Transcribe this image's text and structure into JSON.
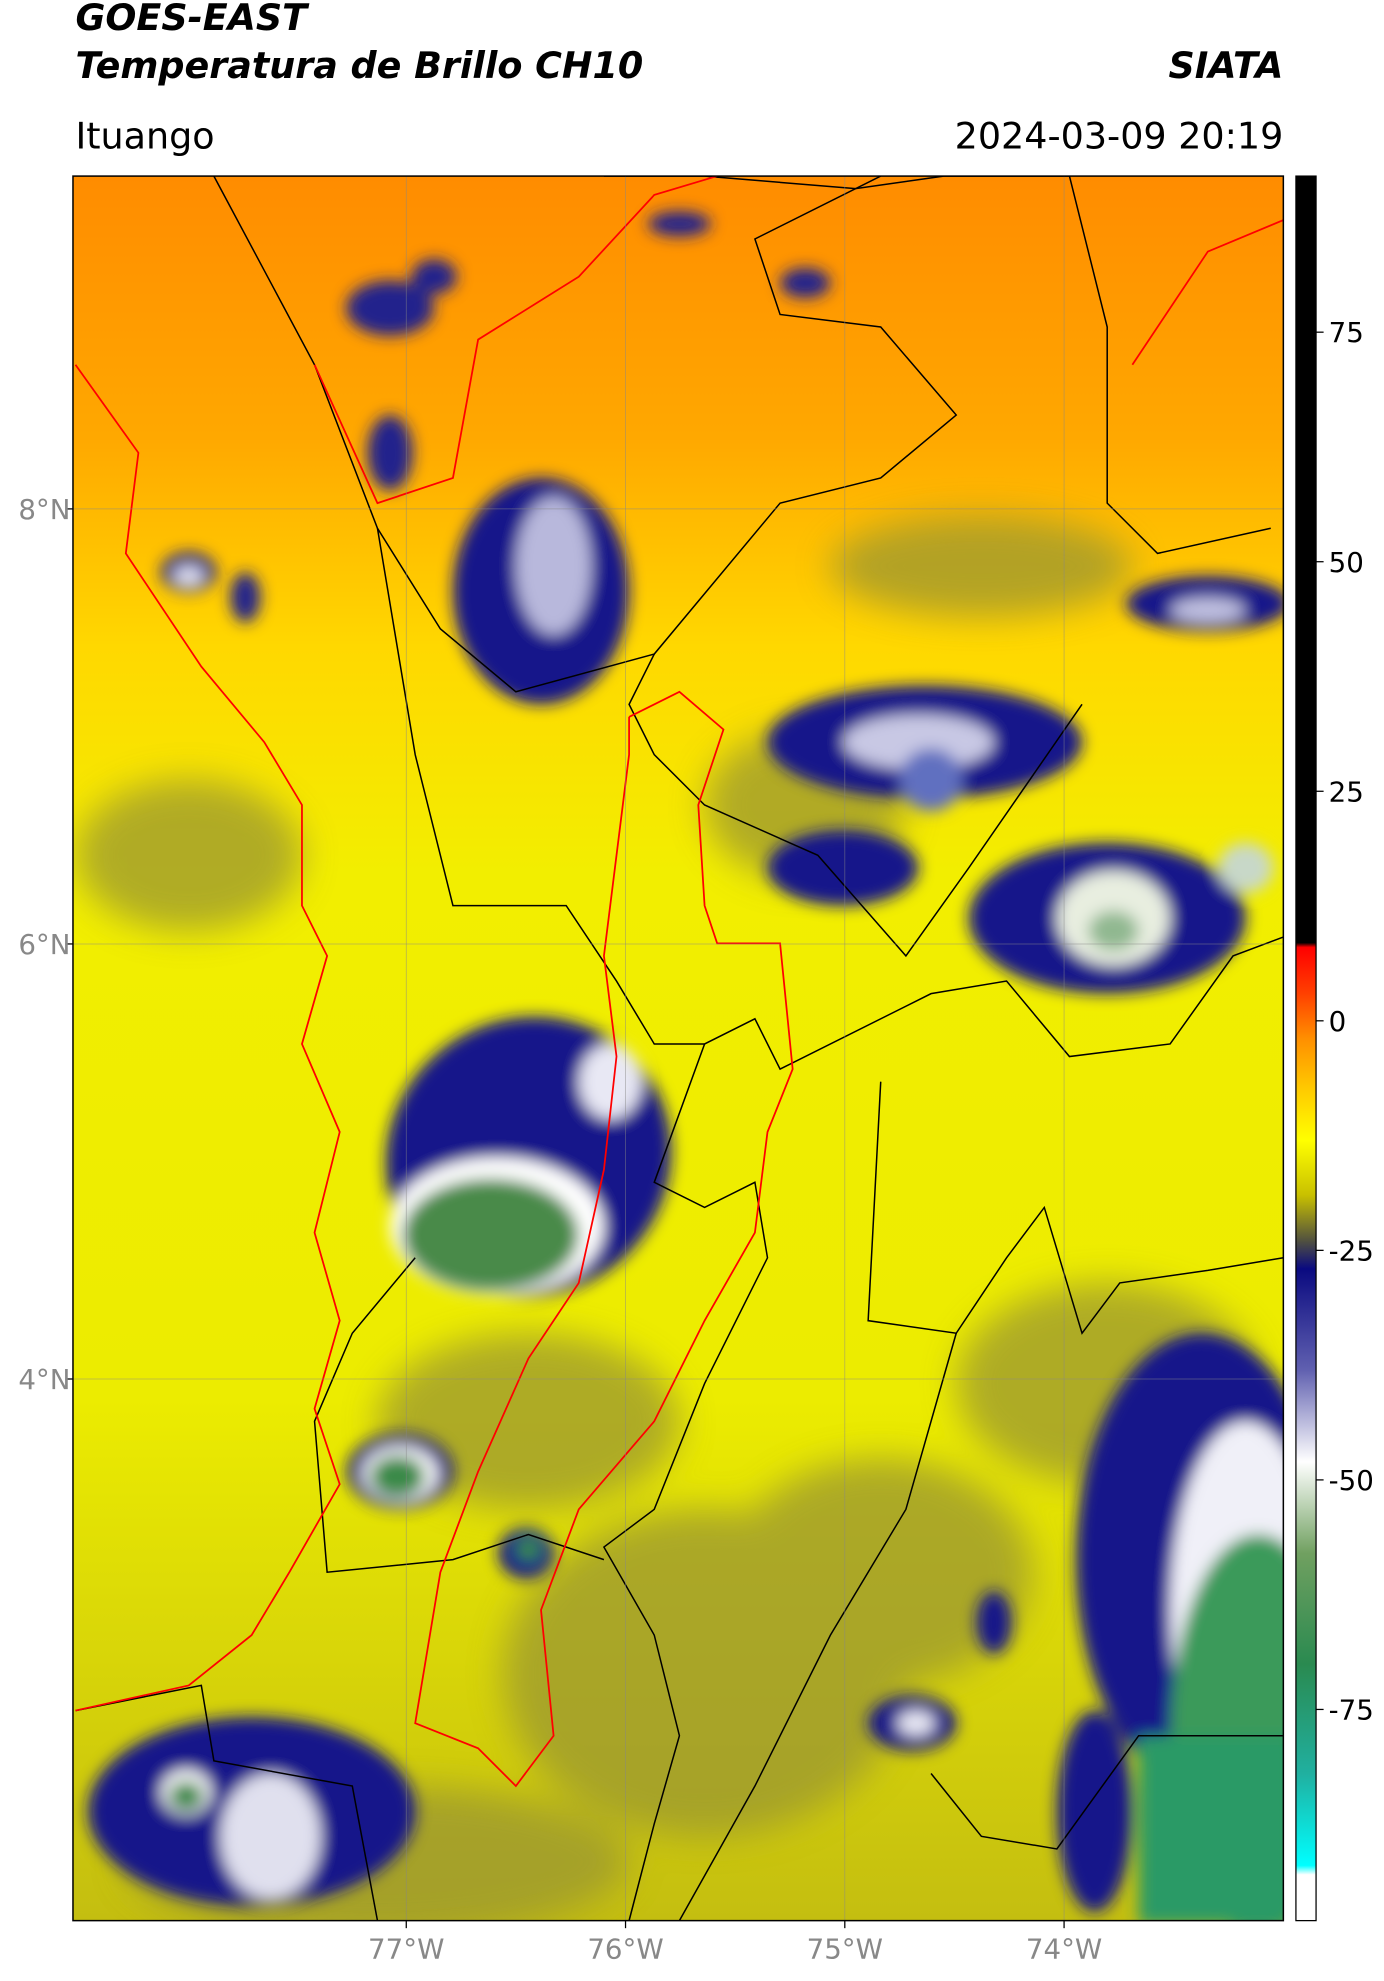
{
  "header": {
    "title": "GOES-EAST",
    "subtitle": "Temperatura de Brillo CH10",
    "organization": "SIATA",
    "location": "Ituango",
    "datetime": "2024-03-09 20:19"
  },
  "map": {
    "xlim": [
      -78.52,
      -73.0
    ],
    "ylim": [
      1.51,
      9.53
    ],
    "xticks": [
      {
        "value": -77,
        "label": "77°W"
      },
      {
        "value": -76,
        "label": "76°W"
      },
      {
        "value": -75,
        "label": "75°W"
      },
      {
        "value": -74,
        "label": "74°W"
      }
    ],
    "yticks": [
      {
        "value": 8,
        "label": "8°N"
      },
      {
        "value": 6,
        "label": "6°N"
      },
      {
        "value": 4,
        "label": "4°N"
      }
    ],
    "grid": true
  },
  "colorbar": {
    "lim": [
      -98,
      92
    ],
    "ticks": [
      75,
      50,
      25,
      0,
      -25,
      -50,
      -75
    ],
    "stops": [
      {
        "value": 92,
        "color": "#000000"
      },
      {
        "value": 8.5,
        "color": "#000000"
      },
      {
        "value": 8,
        "color": "#ff0000"
      },
      {
        "value": 3,
        "color": "#ff4000"
      },
      {
        "value": -2,
        "color": "#ff9000"
      },
      {
        "value": -8,
        "color": "#ffd000"
      },
      {
        "value": -13,
        "color": "#ffff00"
      },
      {
        "value": -19,
        "color": "#c8c000"
      },
      {
        "value": -24,
        "color": "#505040"
      },
      {
        "value": -27,
        "color": "#0a0a80"
      },
      {
        "value": -38,
        "color": "#6060b0"
      },
      {
        "value": -48,
        "color": "#ffffff"
      },
      {
        "value": -58,
        "color": "#70a060"
      },
      {
        "value": -70,
        "color": "#2a8a50"
      },
      {
        "value": -82,
        "color": "#20b0a0"
      },
      {
        "value": -92,
        "color": "#00ffff"
      },
      {
        "value": -93,
        "color": "#ffffff"
      },
      {
        "value": -98,
        "color": "#ffffff"
      }
    ]
  }
}
